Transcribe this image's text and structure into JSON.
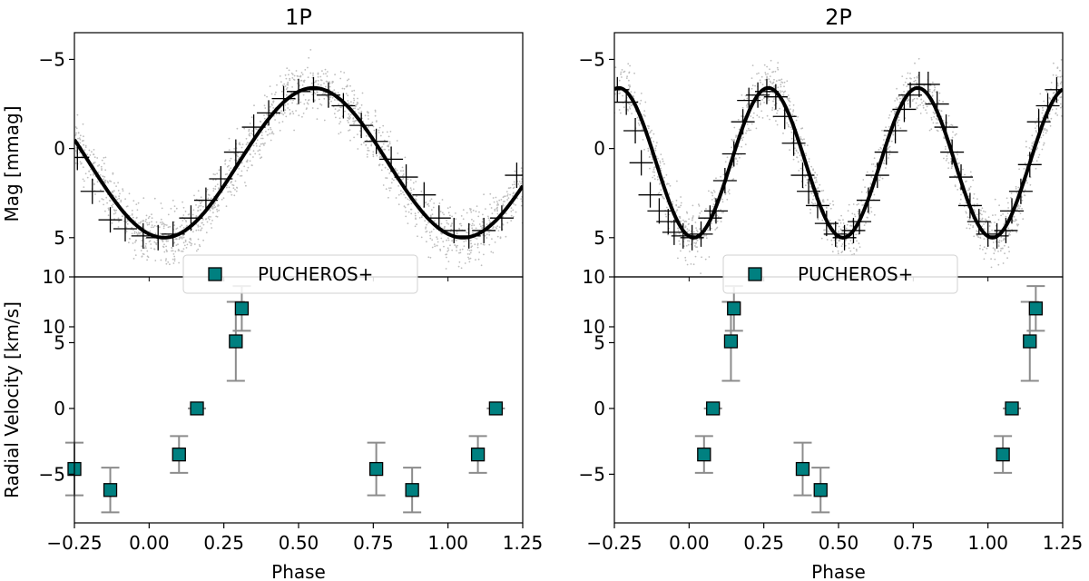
{
  "chart_data": [
    {
      "type": "scatter",
      "title": "1P",
      "xlabel": "Phase",
      "xlim": [
        -0.25,
        1.25
      ],
      "xticks": [
        -0.25,
        0.0,
        0.25,
        0.5,
        0.75,
        1.0,
        1.25
      ],
      "xtick_labels": [
        "−0.25",
        "0.00",
        "0.25",
        "0.50",
        "0.75",
        "1.00",
        "1.25"
      ],
      "top": {
        "ylabel": "Mag [mmag]",
        "ylim": [
          7.2,
          -6.5
        ],
        "yticks": [
          -5,
          0,
          5,
          10
        ],
        "ytick_labels": [
          "−5",
          "0",
          "5",
          "10"
        ],
        "model": {
          "cycles_per_phase": 1,
          "amplitude": 4.2,
          "offset": 0.8,
          "phase_of_max": 0.55
        },
        "binned": [
          {
            "x": -0.24,
            "y": 0.5
          },
          {
            "x": -0.19,
            "y": 2.4
          },
          {
            "x": -0.13,
            "y": 4.0
          },
          {
            "x": -0.08,
            "y": 4.5
          },
          {
            "x": -0.02,
            "y": 4.9
          },
          {
            "x": 0.03,
            "y": 5.0
          },
          {
            "x": 0.08,
            "y": 4.8
          },
          {
            "x": 0.14,
            "y": 3.9
          },
          {
            "x": 0.19,
            "y": 2.9
          },
          {
            "x": 0.24,
            "y": 1.7
          },
          {
            "x": 0.29,
            "y": 0.2
          },
          {
            "x": 0.35,
            "y": -1.2
          },
          {
            "x": 0.4,
            "y": -2.0
          },
          {
            "x": 0.45,
            "y": -2.8
          },
          {
            "x": 0.5,
            "y": -3.2
          },
          {
            "x": 0.55,
            "y": -3.3
          },
          {
            "x": 0.6,
            "y": -3.0
          },
          {
            "x": 0.65,
            "y": -2.4
          },
          {
            "x": 0.71,
            "y": -1.3
          },
          {
            "x": 0.76,
            "y": -0.4
          },
          {
            "x": 0.81,
            "y": 0.6
          },
          {
            "x": 0.86,
            "y": 1.6
          },
          {
            "x": 0.92,
            "y": 2.6
          },
          {
            "x": 0.97,
            "y": 3.9
          },
          {
            "x": 1.02,
            "y": 4.6
          },
          {
            "x": 1.07,
            "y": 4.9
          },
          {
            "x": 1.12,
            "y": 4.6
          },
          {
            "x": 1.18,
            "y": 3.9
          },
          {
            "x": 1.23,
            "y": 1.5
          }
        ]
      },
      "bottom": {
        "ylabel": "Radial Velocity [km/s]",
        "ylim": [
          -8.7,
          10
        ],
        "yticks": [
          -5,
          0,
          5,
          10
        ],
        "ytick_labels": [
          "−5",
          "0",
          "5",
          "10"
        ],
        "legend": {
          "label": "PUCHEROS+",
          "position": "upper center"
        },
        "series": [
          {
            "x": -0.25,
            "y": -4.6,
            "err": 2.0
          },
          {
            "x": -0.13,
            "y": -6.2,
            "err": 1.7
          },
          {
            "x": 0.1,
            "y": -3.5,
            "err": 1.4
          },
          {
            "x": 0.16,
            "y": 0.0,
            "err": 0.0
          },
          {
            "x": 0.29,
            "y": 5.1,
            "err": 3.0
          },
          {
            "x": 0.31,
            "y": 7.6,
            "err": 1.7
          },
          {
            "x": 0.76,
            "y": -4.6,
            "err": 2.0
          },
          {
            "x": 0.88,
            "y": -6.2,
            "err": 1.7
          },
          {
            "x": 1.1,
            "y": -3.5,
            "err": 1.4
          },
          {
            "x": 1.16,
            "y": 0.0,
            "err": 0.0
          }
        ]
      }
    },
    {
      "type": "scatter",
      "title": "2P",
      "xlabel": "Phase",
      "xlim": [
        -0.25,
        1.25
      ],
      "xticks": [
        -0.25,
        0.0,
        0.25,
        0.5,
        0.75,
        1.0,
        1.25
      ],
      "xtick_labels": [
        "−0.25",
        "0.00",
        "0.25",
        "0.50",
        "0.75",
        "1.00",
        "1.25"
      ],
      "top": {
        "ylabel": "",
        "ylim": [
          7.2,
          -6.5
        ],
        "yticks": [
          -5,
          0,
          5,
          10
        ],
        "ytick_labels": [
          "−5",
          "0",
          "5",
          "10"
        ],
        "model": {
          "cycles_per_phase": 2,
          "amplitude": 4.2,
          "offset": 0.8,
          "phase_of_max": 0.265
        },
        "binned": [
          {
            "x": -0.24,
            "y": -3.3
          },
          {
            "x": -0.21,
            "y": -2.6
          },
          {
            "x": -0.18,
            "y": -1.0
          },
          {
            "x": -0.16,
            "y": 0.8
          },
          {
            "x": -0.13,
            "y": 2.6
          },
          {
            "x": -0.1,
            "y": 3.5
          },
          {
            "x": -0.07,
            "y": 4.1
          },
          {
            "x": -0.05,
            "y": 4.7
          },
          {
            "x": -0.02,
            "y": 4.9
          },
          {
            "x": 0.01,
            "y": 5.0
          },
          {
            "x": 0.04,
            "y": 4.8
          },
          {
            "x": 0.07,
            "y": 3.9
          },
          {
            "x": 0.09,
            "y": 3.5
          },
          {
            "x": 0.12,
            "y": 1.8
          },
          {
            "x": 0.15,
            "y": 0.3
          },
          {
            "x": 0.18,
            "y": -1.5
          },
          {
            "x": 0.2,
            "y": -2.7
          },
          {
            "x": 0.23,
            "y": -3.0
          },
          {
            "x": 0.26,
            "y": -3.2
          },
          {
            "x": 0.29,
            "y": -2.9
          },
          {
            "x": 0.32,
            "y": -1.8
          },
          {
            "x": 0.35,
            "y": -0.3
          },
          {
            "x": 0.38,
            "y": 1.5
          },
          {
            "x": 0.4,
            "y": 2.4
          },
          {
            "x": 0.43,
            "y": 3.2
          },
          {
            "x": 0.46,
            "y": 4.2
          },
          {
            "x": 0.49,
            "y": 4.8
          },
          {
            "x": 0.52,
            "y": 5.0
          },
          {
            "x": 0.55,
            "y": 4.6
          },
          {
            "x": 0.57,
            "y": 4.1
          },
          {
            "x": 0.6,
            "y": 2.9
          },
          {
            "x": 0.63,
            "y": 1.5
          },
          {
            "x": 0.66,
            "y": 0.2
          },
          {
            "x": 0.69,
            "y": -1.0
          },
          {
            "x": 0.72,
            "y": -2.2
          },
          {
            "x": 0.74,
            "y": -3.0
          },
          {
            "x": 0.77,
            "y": -3.6
          },
          {
            "x": 0.8,
            "y": -3.6
          },
          {
            "x": 0.83,
            "y": -2.5
          },
          {
            "x": 0.86,
            "y": -1.2
          },
          {
            "x": 0.88,
            "y": 0.2
          },
          {
            "x": 0.91,
            "y": 1.6
          },
          {
            "x": 0.94,
            "y": 3.2
          },
          {
            "x": 0.97,
            "y": 4.1
          },
          {
            "x": 1.0,
            "y": 4.8
          },
          {
            "x": 1.03,
            "y": 4.9
          },
          {
            "x": 1.06,
            "y": 4.6
          },
          {
            "x": 1.08,
            "y": 3.5
          },
          {
            "x": 1.11,
            "y": 2.4
          },
          {
            "x": 1.14,
            "y": 0.9
          },
          {
            "x": 1.17,
            "y": -1.5
          },
          {
            "x": 1.2,
            "y": -2.4
          },
          {
            "x": 1.23,
            "y": -3.3
          }
        ]
      },
      "bottom": {
        "ylabel": "",
        "ylim": [
          -8.7,
          10
        ],
        "yticks": [
          -5,
          0,
          5,
          10
        ],
        "ytick_labels": [
          "−5",
          "0",
          "5",
          "10"
        ],
        "legend": {
          "label": "PUCHEROS+",
          "position": "upper center"
        },
        "series": [
          {
            "x": 0.05,
            "y": -3.5,
            "err": 1.4
          },
          {
            "x": 0.08,
            "y": 0.0,
            "err": 0.0
          },
          {
            "x": 0.14,
            "y": 5.1,
            "err": 3.0
          },
          {
            "x": 0.15,
            "y": 7.6,
            "err": 1.7
          },
          {
            "x": 0.38,
            "y": -4.6,
            "err": 2.0
          },
          {
            "x": 0.44,
            "y": -6.2,
            "err": 1.7
          },
          {
            "x": 1.05,
            "y": -3.5,
            "err": 1.4
          },
          {
            "x": 1.08,
            "y": 0.0,
            "err": 0.0
          },
          {
            "x": 1.14,
            "y": 5.1,
            "err": 3.0
          },
          {
            "x": 1.16,
            "y": 7.6,
            "err": 1.7
          }
        ]
      }
    }
  ],
  "colors": {
    "scatter": "#bdbdbd",
    "model": "#000000",
    "binned": "#000000",
    "marker_fill": "#008080",
    "marker_edge": "#000000",
    "errorbar": "#8c8c8c",
    "axis": "#000000"
  }
}
